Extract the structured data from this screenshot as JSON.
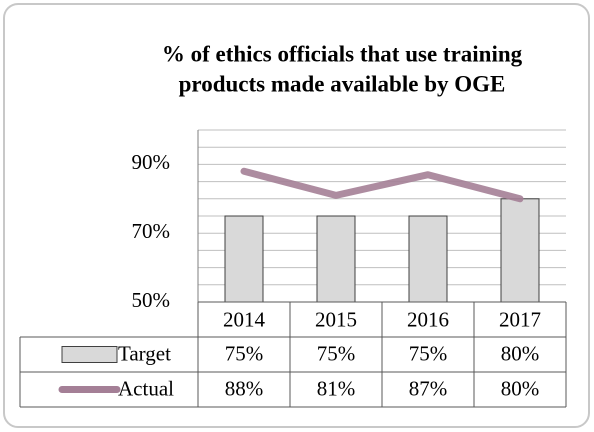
{
  "chart_data": {
    "type": "bar-line",
    "title": [
      "% of ethics officials that use training",
      "products made available by OGE"
    ],
    "categories": [
      "2014",
      "2015",
      "2016",
      "2017"
    ],
    "series": [
      {
        "name": "Target",
        "type": "bar",
        "color": "#d9d9d9",
        "values": [
          75,
          75,
          75,
          80
        ],
        "value_labels": [
          "75%",
          "75%",
          "75%",
          "80%"
        ]
      },
      {
        "name": "Actual",
        "type": "line",
        "color": "#a47f96",
        "values": [
          88,
          81,
          87,
          80
        ],
        "value_labels": [
          "88%",
          "81%",
          "87%",
          "80%"
        ]
      }
    ],
    "ylim": [
      50,
      100
    ],
    "yticks": [
      {
        "value": 50,
        "label": "50%"
      },
      {
        "value": 70,
        "label": "70%"
      },
      {
        "value": 90,
        "label": "90%"
      }
    ],
    "grid_yticks": [
      55,
      60,
      65,
      70,
      75,
      80,
      85,
      90,
      95,
      100
    ],
    "grid": true
  }
}
